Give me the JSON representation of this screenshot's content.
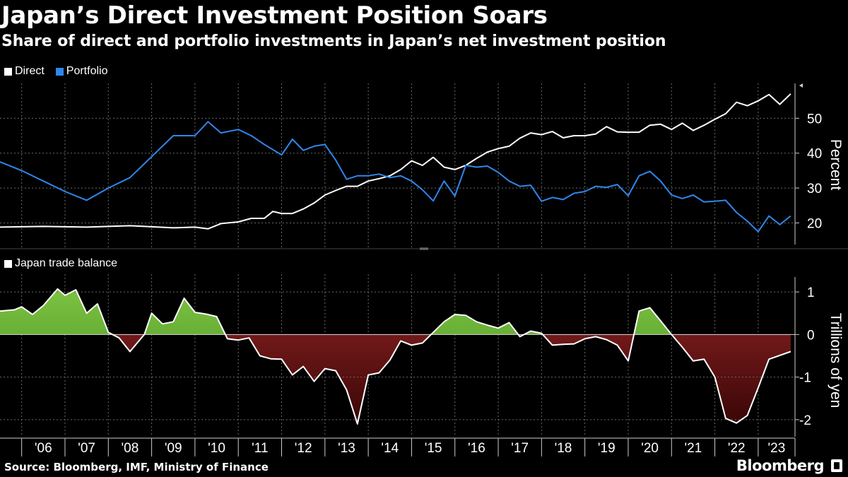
{
  "header": {
    "title": "Japan’s Direct Investment Position Soars",
    "subtitle": "Share of direct and portfolio investments in Japan’s net investment position"
  },
  "footer": {
    "source": "Source: Bloomberg, IMF, Ministry of Finance",
    "brand": "Bloomberg"
  },
  "colors": {
    "direct": "#ffffff",
    "portfolio": "#2f86eb",
    "surplus": "#3f8a1e",
    "deficit": "#8b1a1a",
    "grid": "#6a6a6a"
  },
  "chart_data": [
    {
      "type": "line",
      "title": "Share of direct and portfolio investments in Japan’s net investment position",
      "ylabel": "Percent",
      "ylim": [
        13,
        60
      ],
      "yticks": [
        20,
        30,
        40,
        50
      ],
      "xlim": [
        2005.5,
        2023.85
      ],
      "legend": "top-left",
      "grid": true,
      "series": [
        {
          "name": "Direct",
          "color": "#ffffff",
          "x": [
            2005.5,
            2006,
            2006.5,
            2007,
            2007.5,
            2008,
            2008.5,
            2009,
            2009.5,
            2010,
            2010.3,
            2010.6,
            2011,
            2011.3,
            2011.6,
            2011.8,
            2012.0,
            2012.25,
            2012.5,
            2012.75,
            2013.0,
            2013.25,
            2013.5,
            2013.75,
            2014.0,
            2014.25,
            2014.5,
            2014.75,
            2015.0,
            2015.25,
            2015.5,
            2015.75,
            2016.0,
            2016.25,
            2016.5,
            2016.75,
            2017.0,
            2017.25,
            2017.5,
            2017.75,
            2018.0,
            2018.25,
            2018.5,
            2018.75,
            2019.0,
            2019.25,
            2019.5,
            2019.75,
            2020.0,
            2020.25,
            2020.5,
            2020.75,
            2021.0,
            2021.25,
            2021.5,
            2021.75,
            2022.0,
            2022.25,
            2022.5,
            2022.75,
            2023.0,
            2023.25,
            2023.5,
            2023.75
          ],
          "values": [
            18.8,
            18.9,
            19.0,
            18.9,
            18.8,
            19.0,
            19.2,
            18.9,
            18.6,
            18.8,
            18.3,
            19.8,
            20.3,
            21.3,
            21.3,
            23.3,
            22.7,
            22.7,
            24.0,
            25.7,
            28.0,
            29.3,
            30.5,
            30.5,
            32.0,
            32.7,
            33.5,
            35.3,
            37.8,
            36.5,
            38.8,
            36.0,
            35.3,
            36.5,
            38.5,
            40.3,
            41.3,
            42.0,
            44.3,
            45.8,
            45.3,
            46.2,
            44.4,
            45.0,
            45.0,
            45.5,
            47.6,
            46.1,
            46.0,
            46.0,
            48.0,
            48.3,
            46.8,
            48.6,
            46.5,
            48.0,
            49.7,
            51.3,
            54.6,
            53.6,
            55.0,
            56.8,
            54.0,
            57.0
          ]
        },
        {
          "name": "Portfolio",
          "color": "#2f86eb",
          "x": [
            2005.5,
            2006,
            2006.5,
            2007,
            2007.5,
            2008,
            2008.5,
            2009,
            2009.5,
            2010,
            2010.3,
            2010.6,
            2011,
            2011.3,
            2011.6,
            2011.8,
            2012.0,
            2012.25,
            2012.5,
            2012.75,
            2013.0,
            2013.25,
            2013.5,
            2013.75,
            2014.0,
            2014.25,
            2014.5,
            2014.75,
            2015.0,
            2015.25,
            2015.5,
            2015.75,
            2016.0,
            2016.25,
            2016.5,
            2016.75,
            2017.0,
            2017.25,
            2017.5,
            2017.75,
            2018.0,
            2018.25,
            2018.5,
            2018.75,
            2019.0,
            2019.25,
            2019.5,
            2019.75,
            2020.0,
            2020.25,
            2020.5,
            2020.75,
            2021.0,
            2021.25,
            2021.5,
            2021.75,
            2022.0,
            2022.25,
            2022.5,
            2022.75,
            2023.0,
            2023.25,
            2023.5,
            2023.75
          ],
          "values": [
            37.5,
            35.0,
            32.0,
            29.0,
            26.5,
            30.0,
            33.0,
            39.0,
            45.0,
            45.0,
            49.0,
            45.8,
            46.8,
            45.0,
            42.5,
            41.0,
            39.5,
            44.0,
            40.8,
            42.0,
            42.5,
            38.0,
            32.5,
            33.5,
            33.5,
            34.0,
            33.0,
            33.5,
            32.0,
            29.5,
            26.3,
            32.0,
            27.7,
            36.5,
            36.0,
            36.3,
            34.5,
            32.0,
            30.5,
            30.8,
            26.2,
            27.3,
            26.7,
            28.5,
            29.0,
            30.5,
            30.2,
            31.0,
            27.8,
            33.5,
            34.8,
            32.0,
            28.0,
            27.0,
            28.0,
            26.0,
            26.2,
            26.5,
            23.0,
            20.5,
            17.5,
            22.0,
            19.5,
            22.0
          ]
        }
      ]
    },
    {
      "type": "area",
      "title": "Japan trade balance",
      "ylabel": "Trillions of yen",
      "ylim": [
        -2.4,
        1.35
      ],
      "yticks": [
        1,
        0,
        -1,
        -2
      ],
      "ytick_labels": [
        "1",
        "0",
        "-1",
        "-2"
      ],
      "xlim": [
        2005.5,
        2023.85
      ],
      "legend": "top-left",
      "grid": true,
      "series": [
        {
          "name": "Japan trade balance",
          "color": "#ffffff",
          "x": [
            2005.5,
            2005.83,
            2006.0,
            2006.25,
            2006.5,
            2006.83,
            2007.0,
            2007.25,
            2007.5,
            2007.75,
            2008.0,
            2008.25,
            2008.5,
            2008.83,
            2009.0,
            2009.25,
            2009.5,
            2009.75,
            2010.0,
            2010.25,
            2010.5,
            2010.75,
            2011.0,
            2011.25,
            2011.5,
            2011.75,
            2012.0,
            2012.25,
            2012.5,
            2012.75,
            2013.0,
            2013.25,
            2013.5,
            2013.75,
            2014.0,
            2014.25,
            2014.5,
            2014.75,
            2015.0,
            2015.25,
            2015.5,
            2015.75,
            2016.0,
            2016.25,
            2016.5,
            2016.75,
            2017.0,
            2017.25,
            2017.5,
            2017.75,
            2018.0,
            2018.25,
            2018.5,
            2018.75,
            2019.0,
            2019.25,
            2019.5,
            2019.75,
            2020.0,
            2020.25,
            2020.5,
            2020.75,
            2021.0,
            2021.25,
            2021.5,
            2021.75,
            2022.0,
            2022.25,
            2022.5,
            2022.75,
            2023.0,
            2023.25,
            2023.75
          ],
          "values": [
            0.55,
            0.58,
            0.65,
            0.47,
            0.68,
            1.07,
            0.92,
            1.05,
            0.5,
            0.72,
            0.05,
            -0.08,
            -0.4,
            0.0,
            0.5,
            0.25,
            0.3,
            0.85,
            0.52,
            0.48,
            0.42,
            -0.1,
            -0.13,
            -0.08,
            -0.5,
            -0.57,
            -0.58,
            -0.95,
            -0.75,
            -1.1,
            -0.8,
            -0.85,
            -1.3,
            -2.1,
            -0.95,
            -0.9,
            -0.6,
            -0.15,
            -0.25,
            -0.2,
            0.05,
            0.3,
            0.47,
            0.45,
            0.3,
            0.22,
            0.15,
            0.28,
            -0.05,
            0.08,
            0.03,
            -0.25,
            -0.23,
            -0.22,
            -0.1,
            -0.05,
            -0.12,
            -0.25,
            -0.62,
            0.55,
            0.63,
            0.32,
            0.0,
            -0.3,
            -0.62,
            -0.58,
            -1.0,
            -1.97,
            -2.08,
            -1.9,
            -1.25,
            -0.58,
            -0.4
          ]
        }
      ]
    }
  ],
  "xaxis": {
    "labels": [
      "'06",
      "'07",
      "'08",
      "'09",
      "'10",
      "'11",
      "'12",
      "'13",
      "'14",
      "'15",
      "'16",
      "'17",
      "'18",
      "'19",
      "'20",
      "'21",
      "'22",
      "'23"
    ]
  }
}
